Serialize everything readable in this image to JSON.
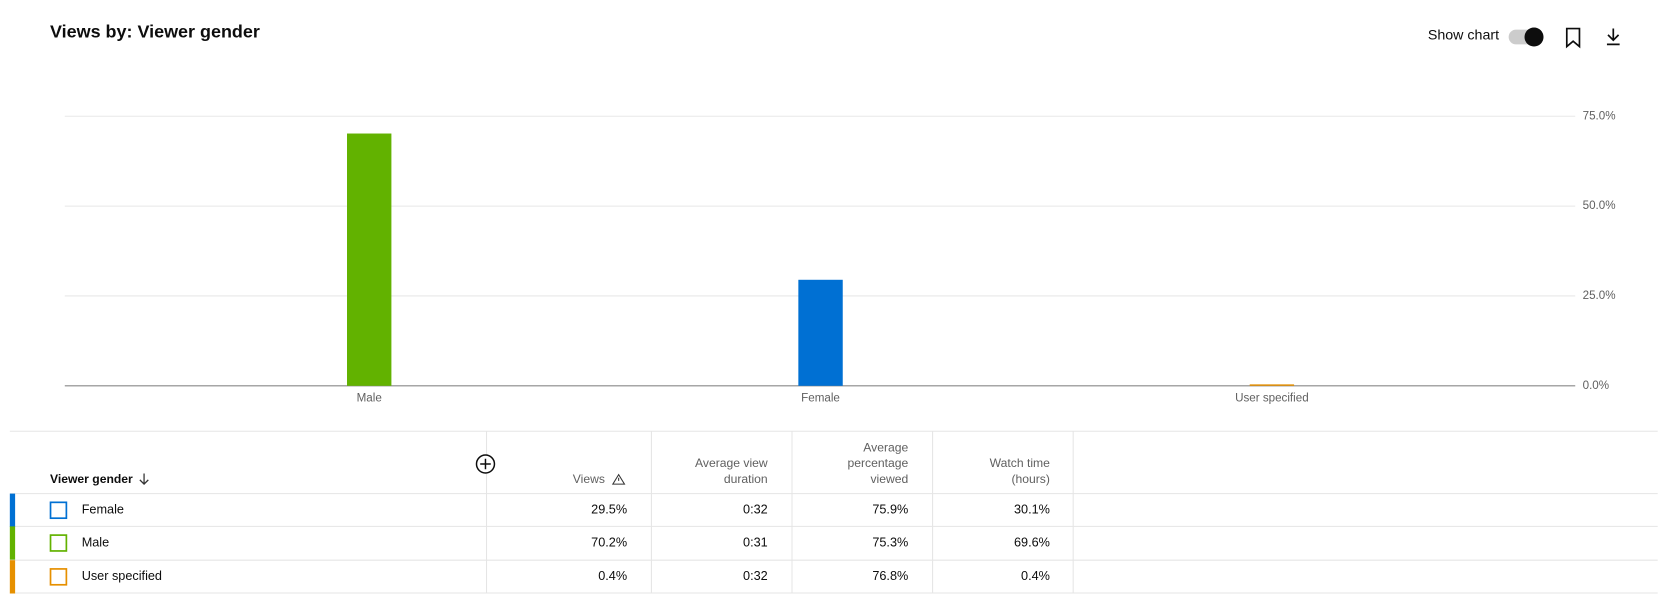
{
  "header": {
    "title": "Views by: Viewer gender",
    "toggle_label": "Show chart"
  },
  "chart_data": {
    "type": "bar",
    "categories": [
      "Male",
      "Female",
      "User specified"
    ],
    "values": [
      70.2,
      29.5,
      0.4
    ],
    "colors": [
      "#62b200",
      "#0070d3",
      "#e69000"
    ],
    "ylim": [
      0,
      75
    ],
    "yticks": [
      {
        "value": 0,
        "label": "0.0%"
      },
      {
        "value": 25,
        "label": "25.0%"
      },
      {
        "value": 50,
        "label": "50.0%"
      },
      {
        "value": 75,
        "label": "75.0%"
      }
    ],
    "grid": true
  },
  "table": {
    "columns": [
      [
        "Viewer gender"
      ],
      [
        "Views"
      ],
      [
        "Average view",
        "duration"
      ],
      [
        "Average",
        "percentage",
        "viewed"
      ],
      [
        "Watch time",
        "(hours)"
      ]
    ],
    "rows": [
      {
        "color": "#0070d3",
        "cells": [
          "Female",
          "29.5%",
          "0:32",
          "75.9%",
          "30.1%"
        ]
      },
      {
        "color": "#62b200",
        "cells": [
          "Male",
          "70.2%",
          "0:31",
          "75.3%",
          "69.6%"
        ]
      },
      {
        "color": "#e69000",
        "cells": [
          "User specified",
          "0.4%",
          "0:32",
          "76.8%",
          "0.4%"
        ]
      }
    ]
  }
}
